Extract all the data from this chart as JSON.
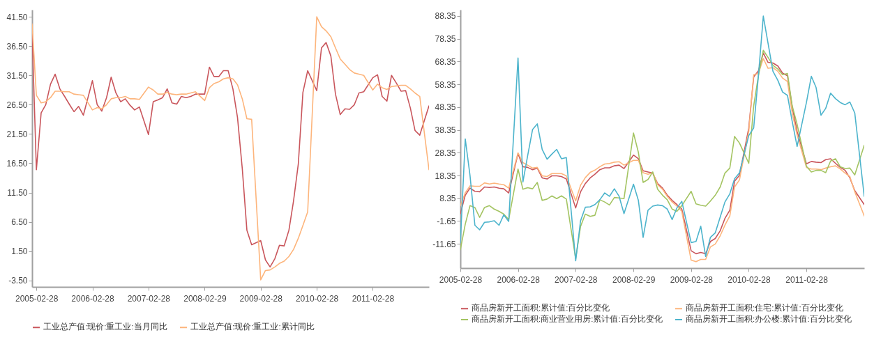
{
  "chart_data": [
    {
      "type": "line",
      "legend": "bottom",
      "grid": false,
      "x": [
        "2005-01-31",
        "2005-02-28",
        "2005-03-31",
        "2005-04-30",
        "2005-05-31",
        "2005-06-30",
        "2005-07-31",
        "2005-08-31",
        "2005-09-30",
        "2005-10-31",
        "2005-11-30",
        "2005-12-31",
        "2006-02-28",
        "2006-03-31",
        "2006-04-30",
        "2006-05-31",
        "2006-06-30",
        "2006-07-31",
        "2006-08-31",
        "2006-09-30",
        "2006-10-31",
        "2006-11-30",
        "2006-12-31",
        "2007-02-28",
        "2007-03-31",
        "2007-04-30",
        "2007-05-31",
        "2007-06-30",
        "2007-07-31",
        "2007-08-31",
        "2007-09-30",
        "2007-10-31",
        "2007-11-30",
        "2007-12-31",
        "2008-02-29",
        "2008-03-31",
        "2008-04-30",
        "2008-05-31",
        "2008-06-30",
        "2008-07-31",
        "2008-08-31",
        "2008-09-30",
        "2008-10-31",
        "2008-11-30",
        "2008-12-31",
        "2009-02-28",
        "2009-03-31",
        "2009-04-30",
        "2009-05-31",
        "2009-06-30",
        "2009-07-31",
        "2009-08-31",
        "2009-09-30",
        "2009-10-31",
        "2009-11-30",
        "2009-12-31",
        "2010-02-28",
        "2010-03-31",
        "2010-04-30",
        "2010-05-31",
        "2010-06-30",
        "2010-07-31",
        "2010-08-31",
        "2010-09-30",
        "2010-10-31",
        "2010-11-30",
        "2010-12-31",
        "2011-02-28",
        "2011-03-31",
        "2011-04-30",
        "2011-05-31",
        "2011-06-30",
        "2011-07-31",
        "2011-08-31",
        "2011-09-30",
        "2011-10-31",
        "2011-11-30",
        "2011-12-31",
        "2012-02-29"
      ],
      "xlim": [
        "2005-01-31",
        "2012-02-29"
      ],
      "xticks": [
        "2005-02-28",
        "2006-02-28",
        "2007-02-28",
        "2008-02-29",
        "2009-02-28",
        "2010-02-28",
        "2011-02-28"
      ],
      "ylim": [
        -4.6,
        42.7
      ],
      "yticks": [
        {
          "value": -3.5,
          "label": "-3.50"
        },
        {
          "value": 1.5,
          "label": "1.50"
        },
        {
          "value": 6.5,
          "label": "6.50"
        },
        {
          "value": 11.5,
          "label": "11.50"
        },
        {
          "value": 16.5,
          "label": "16.50"
        },
        {
          "value": 21.5,
          "label": "21.50"
        },
        {
          "value": 26.5,
          "label": "26.50"
        },
        {
          "value": 31.5,
          "label": "31.50"
        },
        {
          "value": 36.5,
          "label": "36.50"
        },
        {
          "value": 41.5,
          "label": "41.50"
        }
      ],
      "series": [
        {
          "name": "工业总产值:现价:重工业:当月同比",
          "color": "#c9565c",
          "values": [
            39.0,
            15.4,
            25.1,
            26.5,
            30.0,
            31.7,
            29.2,
            27.9,
            26.6,
            25.3,
            26.2,
            24.7,
            30.6,
            26.5,
            25.4,
            27.7,
            31.2,
            28.5,
            27.0,
            27.5,
            26.4,
            25.6,
            26.1,
            21.4,
            27.0,
            27.3,
            27.7,
            29.2,
            26.8,
            26.6,
            27.9,
            27.7,
            27.9,
            28.3,
            28.3,
            32.9,
            31.3,
            31.3,
            32.3,
            32.3,
            29.2,
            24.3,
            15.6,
            5.1,
            2.6,
            3.3,
            0.0,
            -1.2,
            0.2,
            2.5,
            2.4,
            5.1,
            10.1,
            16.4,
            28.6,
            32.3,
            28.9,
            36.2,
            37.1,
            34.8,
            28.3,
            24.8,
            25.8,
            25.7,
            26.5,
            28.5,
            28.7,
            31.1,
            31.6,
            27.9,
            27.1,
            31.5,
            30.2,
            28.8,
            28.9,
            25.9,
            22.1,
            21.3,
            26.3
          ]
        },
        {
          "name": "工业总产值:现价:重工业:累计同比",
          "color": "#fdb57c",
          "values": [
            40.3,
            28.1,
            26.8,
            27.0,
            27.7,
            28.8,
            28.8,
            28.7,
            28.7,
            28.3,
            28.2,
            28.1,
            25.6,
            26.0,
            25.8,
            26.5,
            27.5,
            27.7,
            27.7,
            27.9,
            27.5,
            27.5,
            27.4,
            29.5,
            29.0,
            28.3,
            28.3,
            28.6,
            28.3,
            28.2,
            28.3,
            28.3,
            28.5,
            28.7,
            27.2,
            29.4,
            30.1,
            30.4,
            30.9,
            31.1,
            30.9,
            29.9,
            27.5,
            24.1,
            24.0,
            -3.4,
            -1.8,
            -1.7,
            -1.2,
            -0.6,
            -0.2,
            0.6,
            1.8,
            3.7,
            5.9,
            8.2,
            41.5,
            39.8,
            39.1,
            38.1,
            36.2,
            34.3,
            33.4,
            32.5,
            31.9,
            31.7,
            31.5,
            29.0,
            30.0,
            29.4,
            29.1,
            29.6,
            29.7,
            29.8,
            29.8,
            29.2,
            28.5,
            27.9,
            15.4
          ]
        }
      ]
    },
    {
      "type": "line",
      "legend": "bottom",
      "grid": false,
      "x": [
        "2005-02-28",
        "2005-03-31",
        "2005-04-30",
        "2005-05-31",
        "2005-06-30",
        "2005-07-31",
        "2005-08-31",
        "2005-09-30",
        "2005-10-31",
        "2005-11-30",
        "2005-12-31",
        "2006-02-28",
        "2006-03-31",
        "2006-04-30",
        "2006-05-31",
        "2006-06-30",
        "2006-07-31",
        "2006-08-31",
        "2006-09-30",
        "2006-10-31",
        "2006-11-30",
        "2006-12-31",
        "2007-02-28",
        "2007-03-31",
        "2007-04-30",
        "2007-05-31",
        "2007-06-30",
        "2007-07-31",
        "2007-08-31",
        "2007-09-30",
        "2007-10-31",
        "2007-11-30",
        "2007-12-31",
        "2008-02-29",
        "2008-03-31",
        "2008-04-30",
        "2008-05-31",
        "2008-06-30",
        "2008-07-31",
        "2008-08-31",
        "2008-09-30",
        "2008-10-31",
        "2008-11-30",
        "2008-12-31",
        "2009-02-28",
        "2009-03-31",
        "2009-04-30",
        "2009-05-31",
        "2009-06-30",
        "2009-07-31",
        "2009-08-31",
        "2009-09-30",
        "2009-10-31",
        "2009-11-30",
        "2009-12-31",
        "2010-02-28",
        "2010-03-31",
        "2010-04-30",
        "2010-05-31",
        "2010-06-30",
        "2010-07-31",
        "2010-08-31",
        "2010-09-30",
        "2010-10-31",
        "2010-11-30",
        "2010-12-31",
        "2011-02-28",
        "2011-03-31",
        "2011-04-30",
        "2011-05-31",
        "2011-06-30",
        "2011-07-31",
        "2011-08-31",
        "2011-09-30",
        "2011-10-31",
        "2011-11-30",
        "2011-12-31",
        "2012-02-29"
      ],
      "xlim": [
        "2005-02-28",
        "2012-02-29"
      ],
      "xticks": [
        "2005-02-28",
        "2006-02-28",
        "2007-02-28",
        "2008-02-29",
        "2009-02-28",
        "2010-02-28",
        "2011-02-28"
      ],
      "ylim": [
        -22.3,
        91.1
      ],
      "yticks": [
        -11.65,
        -1.65,
        8.35,
        18.35,
        28.35,
        38.35,
        48.35,
        58.35,
        68.35,
        78.35,
        88.35
      ],
      "series": [
        {
          "name": "商品房新开工面积:累计值:百分比变化",
          "color": "#c9565c",
          "values": [
            1.6,
            9.7,
            12.8,
            11.4,
            11.2,
            13.3,
            13.1,
            13.3,
            12.8,
            12.5,
            10.7,
            28.0,
            22.2,
            21.9,
            20.9,
            21.6,
            17.3,
            16.8,
            18.2,
            18.2,
            17.9,
            16.8,
            4.1,
            11.2,
            14.8,
            17.3,
            18.9,
            20.9,
            21.7,
            21.7,
            22.6,
            22.9,
            21.4,
            27.3,
            25.7,
            20.4,
            19.9,
            19.4,
            14.8,
            12.8,
            9.7,
            7.4,
            5.6,
            3.6,
            -14.7,
            -16.0,
            -15.4,
            -16.0,
            -10.6,
            -9.3,
            -5.9,
            -0.5,
            3.1,
            15.8,
            18.4,
            39.2,
            61.6,
            64.3,
            72.1,
            68.0,
            67.7,
            66.4,
            63.3,
            62.1,
            48.4,
            37.7,
            23.5,
            24.5,
            24.2,
            24.0,
            25.3,
            25.7,
            23.7,
            21.9,
            20.6,
            17.3,
            11.7,
            5.6
          ]
        },
        {
          "name": "商品房新开工面积:住宅:累计值:百分比变化",
          "color": "#fdb57c",
          "values": [
            5.1,
            10.7,
            13.8,
            13.6,
            13.6,
            15.1,
            14.6,
            15.0,
            14.6,
            14.3,
            12.8,
            28.3,
            24.0,
            22.9,
            21.6,
            21.9,
            18.2,
            17.9,
            19.2,
            19.2,
            19.2,
            18.2,
            7.2,
            14.1,
            17.4,
            19.7,
            20.7,
            22.2,
            23.4,
            23.6,
            24.2,
            24.4,
            22.9,
            25.0,
            25.0,
            19.6,
            18.9,
            19.6,
            14.3,
            12.3,
            9.2,
            6.7,
            4.9,
            2.6,
            -18.8,
            -19.5,
            -18.5,
            -18.5,
            -13.0,
            -11.7,
            -8.1,
            -3.5,
            0.6,
            13.3,
            16.4,
            37.7,
            62.6,
            63.1,
            69.7,
            65.4,
            65.7,
            64.1,
            61.1,
            59.6,
            45.8,
            36.2,
            21.9,
            21.2,
            21.2,
            20.9,
            21.6,
            22.2,
            22.6,
            21.2,
            19.4,
            17.9,
            11.2,
            0.6
          ]
        },
        {
          "name": "商品房新开工面积:商业营业用房:累计值:百分比变化",
          "color": "#a4c462",
          "values": [
            -14.2,
            -3.0,
            5.1,
            4.3,
            0.0,
            4.3,
            5.1,
            3.6,
            2.6,
            1.4,
            -1.0,
            21.2,
            12.3,
            13.0,
            12.5,
            15.3,
            7.4,
            8.0,
            9.4,
            8.2,
            9.4,
            8.0,
            -18.1,
            -4.0,
            1.4,
            0.4,
            0.9,
            7.7,
            6.7,
            5.4,
            8.7,
            8.5,
            8.2,
            37.0,
            28.5,
            15.3,
            16.6,
            19.9,
            12.3,
            9.7,
            7.7,
            3.6,
            2.6,
            5.1,
            11.4,
            5.9,
            5.3,
            4.9,
            7.1,
            9.7,
            13.3,
            19.4,
            21.6,
            35.5,
            32.6,
            23.7,
            48.9,
            62.1,
            73.3,
            70.2,
            66.7,
            65.1,
            62.6,
            63.1,
            48.9,
            40.8,
            22.4,
            19.9,
            20.6,
            20.6,
            19.6,
            24.7,
            25.7,
            22.2,
            21.4,
            21.6,
            18.6,
            31.6
          ]
        },
        {
          "name": "商品房新开工面积:办公楼:累计值:百分比变化",
          "color": "#4db4cc",
          "values": [
            -11.1,
            34.4,
            18.4,
            -3.5,
            -5.5,
            -2.2,
            -2.0,
            -1.5,
            -3.5,
            1.1,
            -1.8,
            69.9,
            15.5,
            27.0,
            38.5,
            41.0,
            29.8,
            25.5,
            27.7,
            29.8,
            25.7,
            26.2,
            -19.1,
            -1.5,
            4.4,
            4.6,
            5.6,
            7.7,
            10.7,
            9.2,
            12.5,
            9.2,
            1.6,
            14.5,
            7.4,
            -8.8,
            3.1,
            4.9,
            5.4,
            5.1,
            3.6,
            -1.0,
            4.1,
            7.0,
            -11.1,
            -10.6,
            -3.9,
            -17.2,
            -8.8,
            -6.8,
            0.1,
            6.7,
            10.3,
            16.9,
            19.5,
            35.9,
            39.2,
            62.1,
            88.3,
            76.4,
            64.1,
            60.1,
            55.0,
            53.5,
            42.1,
            31.1,
            50.4,
            61.9,
            57.0,
            44.8,
            47.8,
            54.5,
            52.1,
            50.4,
            49.4,
            50.6,
            45.8,
            9.2
          ]
        }
      ]
    }
  ]
}
